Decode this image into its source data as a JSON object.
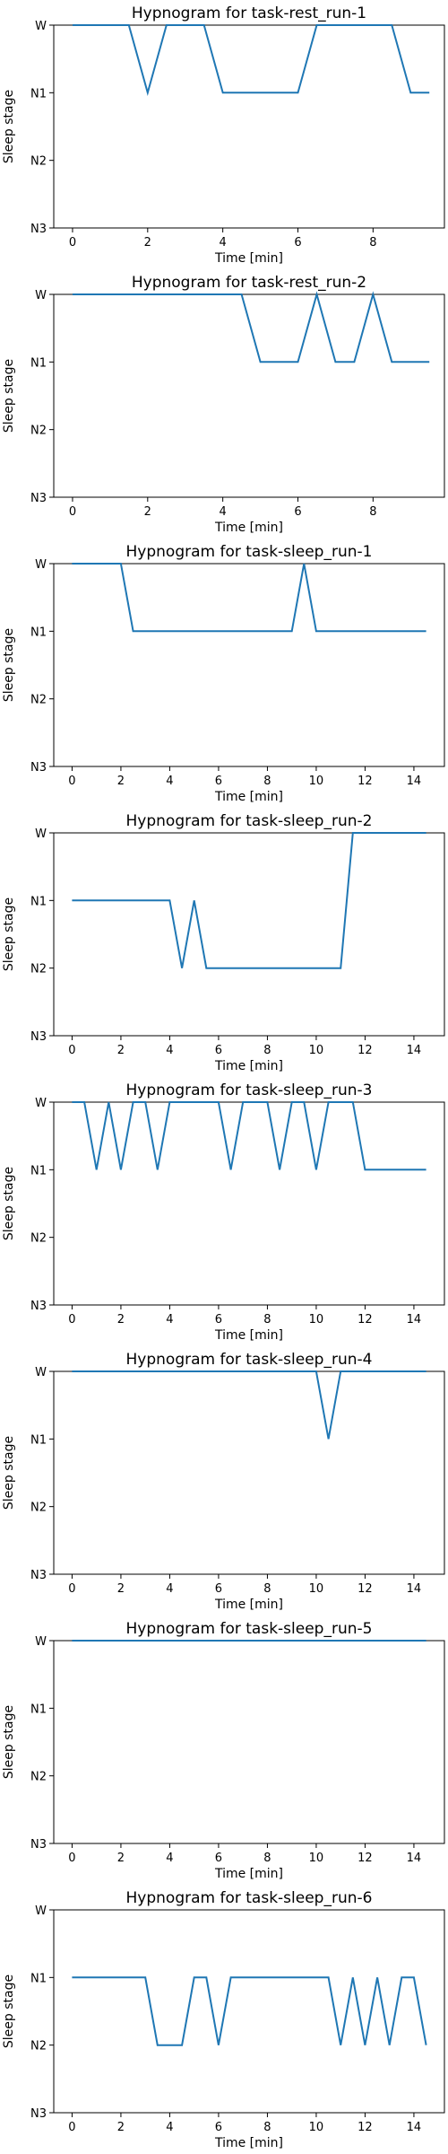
{
  "colors": {
    "series": "#1f77b4"
  },
  "chart_data": [
    {
      "type": "line",
      "title": "Hypnogram for task-rest_run-1",
      "xlabel": "Time [min]",
      "ylabel": "Sleep stage",
      "xlim": [
        -0.5,
        9.9
      ],
      "xticks": [
        0,
        2,
        4,
        6,
        8
      ],
      "yticks": [
        "W",
        "N1",
        "N2",
        "N3"
      ],
      "ylim": [
        0,
        3
      ],
      "grid": false,
      "x": [
        0,
        0.5,
        1,
        1.5,
        2,
        2.5,
        3,
        3.5,
        4,
        4.5,
        5,
        5.5,
        6,
        6.5,
        7,
        7.5,
        8,
        8.5,
        9,
        9.5
      ],
      "values": [
        0,
        0,
        0,
        0,
        1,
        0,
        0,
        0,
        1,
        1,
        1,
        1,
        1,
        0,
        0,
        0,
        0,
        0,
        1,
        1
      ]
    },
    {
      "type": "line",
      "title": "Hypnogram for task-rest_run-2",
      "xlabel": "Time [min]",
      "ylabel": "Sleep stage",
      "xlim": [
        -0.5,
        9.9
      ],
      "xticks": [
        0,
        2,
        4,
        6,
        8
      ],
      "yticks": [
        "W",
        "N1",
        "N2",
        "N3"
      ],
      "ylim": [
        0,
        3
      ],
      "grid": false,
      "x": [
        0,
        0.5,
        1,
        1.5,
        2,
        2.5,
        3,
        3.5,
        4,
        4.5,
        5,
        5.5,
        6,
        6.5,
        7,
        7.5,
        8,
        8.5,
        9,
        9.5
      ],
      "values": [
        0,
        0,
        0,
        0,
        0,
        0,
        0,
        0,
        0,
        0,
        1,
        1,
        1,
        0,
        1,
        1,
        0,
        1,
        1,
        1
      ]
    },
    {
      "type": "line",
      "title": "Hypnogram for task-sleep_run-1",
      "xlabel": "Time [min]",
      "ylabel": "Sleep stage",
      "xlim": [
        -0.75,
        15.25
      ],
      "xticks": [
        0,
        2,
        4,
        6,
        8,
        10,
        12,
        14
      ],
      "yticks": [
        "W",
        "N1",
        "N2",
        "N3"
      ],
      "ylim": [
        0,
        3
      ],
      "grid": false,
      "x": [
        0,
        0.5,
        1,
        1.5,
        2,
        2.5,
        3,
        3.5,
        4,
        4.5,
        5,
        5.5,
        6,
        6.5,
        7,
        7.5,
        8,
        8.5,
        9,
        9.5,
        10,
        10.5,
        11,
        11.5,
        12,
        12.5,
        13,
        13.5,
        14,
        14.5
      ],
      "values": [
        0,
        0,
        0,
        0,
        0,
        1,
        1,
        1,
        1,
        1,
        1,
        1,
        1,
        1,
        1,
        1,
        1,
        1,
        1,
        0,
        1,
        1,
        1,
        1,
        1,
        1,
        1,
        1,
        1,
        1
      ]
    },
    {
      "type": "line",
      "title": "Hypnogram for task-sleep_run-2",
      "xlabel": "Time [min]",
      "ylabel": "Sleep stage",
      "xlim": [
        -0.75,
        15.25
      ],
      "xticks": [
        0,
        2,
        4,
        6,
        8,
        10,
        12,
        14
      ],
      "yticks": [
        "W",
        "N1",
        "N2",
        "N3"
      ],
      "ylim": [
        0,
        3
      ],
      "grid": false,
      "x": [
        0,
        0.5,
        1,
        1.5,
        2,
        2.5,
        3,
        3.5,
        4,
        4.5,
        5,
        5.5,
        6,
        6.5,
        7,
        7.5,
        8,
        8.5,
        9,
        9.5,
        10,
        10.5,
        11,
        11.5,
        12,
        12.5,
        13,
        13.5,
        14,
        14.5
      ],
      "values": [
        1,
        1,
        1,
        1,
        1,
        1,
        1,
        1,
        1,
        2,
        1,
        2,
        2,
        2,
        2,
        2,
        2,
        2,
        2,
        2,
        2,
        2,
        2,
        0,
        0,
        0,
        0,
        0,
        0,
        0
      ]
    },
    {
      "type": "line",
      "title": "Hypnogram for task-sleep_run-3",
      "xlabel": "Time [min]",
      "ylabel": "Sleep stage",
      "xlim": [
        -0.75,
        15.25
      ],
      "xticks": [
        0,
        2,
        4,
        6,
        8,
        10,
        12,
        14
      ],
      "yticks": [
        "W",
        "N1",
        "N2",
        "N3"
      ],
      "ylim": [
        0,
        3
      ],
      "grid": false,
      "x": [
        0,
        0.5,
        1,
        1.5,
        2,
        2.5,
        3,
        3.5,
        4,
        4.5,
        5,
        5.5,
        6,
        6.5,
        7,
        7.5,
        8,
        8.5,
        9,
        9.5,
        10,
        10.5,
        11,
        11.5,
        12,
        12.5,
        13,
        13.5,
        14,
        14.5
      ],
      "values": [
        0,
        0,
        1,
        0,
        1,
        0,
        0,
        1,
        0,
        0,
        0,
        0,
        0,
        1,
        0,
        0,
        0,
        1,
        0,
        0,
        1,
        0,
        0,
        0,
        1,
        1,
        1,
        1,
        1,
        1
      ]
    },
    {
      "type": "line",
      "title": "Hypnogram for task-sleep_run-4",
      "xlabel": "Time [min]",
      "ylabel": "Sleep stage",
      "xlim": [
        -0.75,
        15.25
      ],
      "xticks": [
        0,
        2,
        4,
        6,
        8,
        10,
        12,
        14
      ],
      "yticks": [
        "W",
        "N1",
        "N2",
        "N3"
      ],
      "ylim": [
        0,
        3
      ],
      "grid": false,
      "x": [
        0,
        0.5,
        1,
        1.5,
        2,
        2.5,
        3,
        3.5,
        4,
        4.5,
        5,
        5.5,
        6,
        6.5,
        7,
        7.5,
        8,
        8.5,
        9,
        9.5,
        10,
        10.5,
        11,
        11.5,
        12,
        12.5,
        13,
        13.5,
        14,
        14.5
      ],
      "values": [
        0,
        0,
        0,
        0,
        0,
        0,
        0,
        0,
        0,
        0,
        0,
        0,
        0,
        0,
        0,
        0,
        0,
        0,
        0,
        0,
        0,
        1,
        0,
        0,
        0,
        0,
        0,
        0,
        0,
        0
      ]
    },
    {
      "type": "line",
      "title": "Hypnogram for task-sleep_run-5",
      "xlabel": "Time [min]",
      "ylabel": "Sleep stage",
      "xlim": [
        -0.75,
        15.25
      ],
      "xticks": [
        0,
        2,
        4,
        6,
        8,
        10,
        12,
        14
      ],
      "yticks": [
        "W",
        "N1",
        "N2",
        "N3"
      ],
      "ylim": [
        0,
        3
      ],
      "grid": false,
      "x": [
        0,
        0.5,
        1,
        1.5,
        2,
        2.5,
        3,
        3.5,
        4,
        4.5,
        5,
        5.5,
        6,
        6.5,
        7,
        7.5,
        8,
        8.5,
        9,
        9.5,
        10,
        10.5,
        11,
        11.5,
        12,
        12.5,
        13,
        13.5,
        14,
        14.5
      ],
      "values": [
        0,
        0,
        0,
        0,
        0,
        0,
        0,
        0,
        0,
        0,
        0,
        0,
        0,
        0,
        0,
        0,
        0,
        0,
        0,
        0,
        0,
        0,
        0,
        0,
        0,
        0,
        0,
        0,
        0,
        0
      ]
    },
    {
      "type": "line",
      "title": "Hypnogram for task-sleep_run-6",
      "xlabel": "Time [min]",
      "ylabel": "Sleep stage",
      "xlim": [
        -0.75,
        15.25
      ],
      "xticks": [
        0,
        2,
        4,
        6,
        8,
        10,
        12,
        14
      ],
      "yticks": [
        "W",
        "N1",
        "N2",
        "N3"
      ],
      "ylim": [
        0,
        3
      ],
      "grid": false,
      "x": [
        0,
        0.5,
        1,
        1.5,
        2,
        2.5,
        3,
        3.5,
        4,
        4.5,
        5,
        5.5,
        6,
        6.5,
        7,
        7.5,
        8,
        8.5,
        9,
        9.5,
        10,
        10.5,
        11,
        11.5,
        12,
        12.5,
        13,
        13.5,
        14,
        14.5
      ],
      "values": [
        1,
        1,
        1,
        1,
        1,
        1,
        1,
        2,
        2,
        2,
        1,
        1,
        2,
        1,
        1,
        1,
        1,
        1,
        1,
        1,
        1,
        1,
        2,
        1,
        2,
        1,
        2,
        1,
        1,
        2
      ]
    }
  ]
}
